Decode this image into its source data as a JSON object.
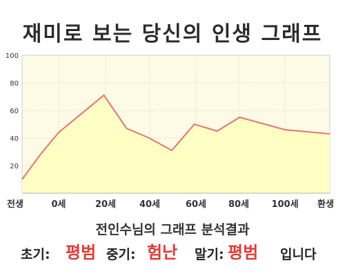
{
  "title": "재미로 보는 당신의 인생 그래프",
  "chart_data": {
    "type": "area",
    "x_labels": [
      "전생",
      "0세",
      "20세",
      "40세",
      "60세",
      "80세",
      "100세",
      "환생"
    ],
    "y_ticks": [
      20,
      40,
      60,
      80,
      100
    ],
    "ylim": [
      0,
      100
    ],
    "points": [
      {
        "x": -10,
        "y": 10
      },
      {
        "x": -5,
        "y": 28
      },
      {
        "x": 0,
        "y": 44
      },
      {
        "x": 20,
        "y": 71
      },
      {
        "x": 30,
        "y": 47
      },
      {
        "x": 40,
        "y": 40
      },
      {
        "x": 50,
        "y": 31
      },
      {
        "x": 60,
        "y": 50
      },
      {
        "x": 70,
        "y": 45
      },
      {
        "x": 80,
        "y": 55
      },
      {
        "x": 100,
        "y": 46
      },
      {
        "x": 115,
        "y": 43
      }
    ],
    "line_color": "#e57373",
    "fill_color": "#ffffc4",
    "plot_bg": "#fdfbe6",
    "grid": true
  },
  "analysis": {
    "title": "전인수님의 그래프 분석결과",
    "early_label": "초기:",
    "early_value": "평범",
    "middle_label": "중기:",
    "middle_value": "험난",
    "late_label": "말기:",
    "late_value": "평범",
    "ending": "입니다"
  }
}
